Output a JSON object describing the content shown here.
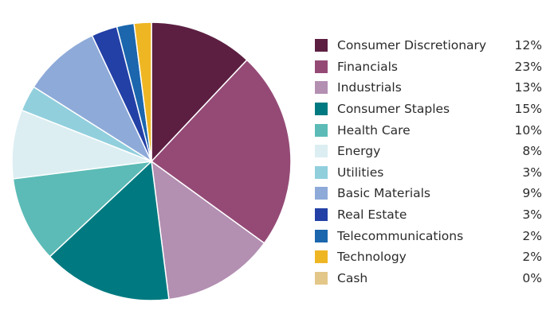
{
  "chart_data": {
    "type": "pie",
    "title": "",
    "legend_position": "right",
    "slices": [
      {
        "label": "Consumer Discretionary",
        "value": 12,
        "display": "12%",
        "color": "#5c1f42"
      },
      {
        "label": "Financials",
        "value": 23,
        "display": "23%",
        "color": "#954a76"
      },
      {
        "label": "Industrials",
        "value": 13,
        "display": "13%",
        "color": "#b38fb2"
      },
      {
        "label": "Consumer Staples",
        "value": 15,
        "display": "15%",
        "color": "#007a80"
      },
      {
        "label": "Health Care",
        "value": 10,
        "display": "10%",
        "color": "#5cbbb6"
      },
      {
        "label": "Energy",
        "value": 8,
        "display": "8%",
        "color": "#dceef2"
      },
      {
        "label": "Utilities",
        "value": 3,
        "display": "3%",
        "color": "#91cfdd"
      },
      {
        "label": "Basic Materials",
        "value": 9,
        "display": "9%",
        "color": "#8eaad9"
      },
      {
        "label": "Real Estate",
        "value": 3,
        "display": "3%",
        "color": "#2340a6"
      },
      {
        "label": "Telecommunications",
        "value": 2,
        "display": "2%",
        "color": "#1b66ad"
      },
      {
        "label": "Technology",
        "value": 2,
        "display": "2%",
        "color": "#efb624"
      },
      {
        "label": "Cash",
        "value": 0,
        "display": "0%",
        "color": "#e3c789"
      }
    ]
  }
}
